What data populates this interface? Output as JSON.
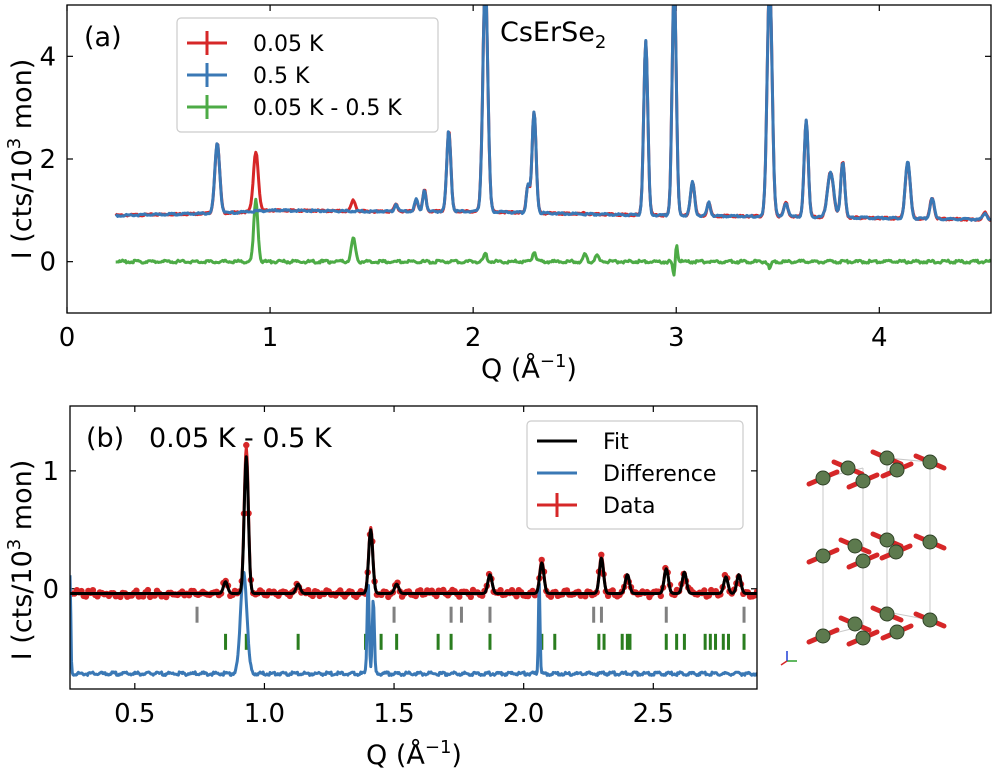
{
  "chart_data": [
    {
      "type": "line",
      "panel_label": "(a)",
      "title": "CsErSe",
      "title_subscript": "2",
      "xlabel": "Q (Å",
      "xlabel_sup": "−1",
      "xlabel_tail": ")",
      "ylabel": "I (cts/10",
      "ylabel_sup": "3",
      "ylabel_tail": " mon)",
      "xlim": [
        0,
        4.55
      ],
      "ylim": [
        -1,
        5
      ],
      "xticks": [
        0,
        1,
        2,
        3,
        4
      ],
      "yticks": [
        0,
        2,
        4
      ],
      "legend": {
        "placement": "top-left"
      },
      "series": [
        {
          "name": "0.05 K",
          "color": "#d62728",
          "baseline": [
            [
              0.24,
              0.9
            ],
            [
              0.8,
              0.95
            ],
            [
              1.0,
              1.0
            ],
            [
              1.5,
              0.98
            ],
            [
              2.0,
              0.98
            ],
            [
              2.5,
              0.93
            ],
            [
              3.0,
              0.9
            ],
            [
              3.5,
              0.88
            ],
            [
              4.0,
              0.85
            ],
            [
              4.55,
              0.82
            ]
          ],
          "peaks": [
            [
              0.74,
              2.3,
              0.012
            ],
            [
              0.93,
              2.15,
              0.012
            ],
            [
              1.41,
              1.2,
              0.01
            ],
            [
              1.62,
              1.12,
              0.008
            ],
            [
              1.72,
              1.22,
              0.008
            ],
            [
              1.76,
              1.4,
              0.008
            ],
            [
              1.88,
              2.55,
              0.01
            ],
            [
              2.06,
              5.5,
              0.012
            ],
            [
              2.27,
              1.5,
              0.008
            ],
            [
              2.3,
              2.92,
              0.01
            ],
            [
              2.55,
              0.95,
              0.008
            ],
            [
              2.61,
              0.92,
              0.008
            ],
            [
              2.85,
              4.3,
              0.01
            ],
            [
              2.99,
              5.5,
              0.01
            ],
            [
              3.08,
              1.55,
              0.01
            ],
            [
              3.16,
              1.15,
              0.008
            ],
            [
              3.46,
              5.5,
              0.012
            ],
            [
              3.54,
              1.15,
              0.01
            ],
            [
              3.64,
              2.75,
              0.01
            ],
            [
              3.76,
              1.75,
              0.015
            ],
            [
              3.82,
              1.95,
              0.01
            ],
            [
              4.14,
              1.95,
              0.012
            ],
            [
              4.26,
              1.25,
              0.01
            ],
            [
              4.52,
              0.95,
              0.01
            ]
          ]
        },
        {
          "name": "0.5 K",
          "color": "#3a78b5",
          "baseline": [
            [
              0.24,
              0.9
            ],
            [
              0.8,
              0.95
            ],
            [
              1.0,
              1.0
            ],
            [
              1.5,
              0.98
            ],
            [
              2.0,
              0.98
            ],
            [
              2.5,
              0.93
            ],
            [
              3.0,
              0.9
            ],
            [
              3.5,
              0.88
            ],
            [
              4.0,
              0.85
            ],
            [
              4.55,
              0.82
            ]
          ],
          "peaks": [
            [
              0.74,
              2.3,
              0.012
            ],
            [
              1.62,
              1.12,
              0.008
            ],
            [
              1.72,
              1.22,
              0.008
            ],
            [
              1.76,
              1.4,
              0.008
            ],
            [
              1.88,
              2.55,
              0.01
            ],
            [
              2.06,
              5.5,
              0.012
            ],
            [
              2.27,
              1.5,
              0.008
            ],
            [
              2.3,
              2.92,
              0.01
            ],
            [
              2.85,
              4.3,
              0.01
            ],
            [
              2.99,
              5.5,
              0.01
            ],
            [
              3.08,
              1.55,
              0.01
            ],
            [
              3.16,
              1.15,
              0.008
            ],
            [
              3.46,
              5.5,
              0.012
            ],
            [
              3.54,
              1.15,
              0.01
            ],
            [
              3.64,
              2.75,
              0.01
            ],
            [
              3.76,
              1.75,
              0.015
            ],
            [
              3.82,
              1.95,
              0.01
            ],
            [
              4.14,
              1.95,
              0.012
            ],
            [
              4.26,
              1.25,
              0.01
            ],
            [
              4.52,
              0.95,
              0.01
            ]
          ]
        },
        {
          "name": "0.05 K - 0.5 K",
          "color": "#4dab46",
          "baseline": [
            [
              0.24,
              0.0
            ],
            [
              4.55,
              0.0
            ]
          ],
          "peaks": [
            [
              0.93,
              1.2,
              0.01
            ],
            [
              1.41,
              0.45,
              0.01
            ],
            [
              2.06,
              0.15,
              0.008
            ],
            [
              2.3,
              0.2,
              0.008
            ],
            [
              2.55,
              0.15,
              0.008
            ],
            [
              2.61,
              0.12,
              0.008
            ],
            [
              2.99,
              -0.35,
              0.006
            ],
            [
              3.0,
              0.4,
              0.006
            ],
            [
              3.46,
              -0.15,
              0.006
            ]
          ]
        }
      ]
    },
    {
      "type": "line",
      "panel_label": "(b)",
      "title": "0.05 K - 0.5 K",
      "xlabel": "Q (Å",
      "xlabel_sup": "−1",
      "xlabel_tail": ")",
      "ylabel": "I (cts/10",
      "ylabel_sup": "3",
      "ylabel_tail": " mon)",
      "xlim": [
        0.25,
        2.9
      ],
      "ylim": [
        -0.85,
        1.55
      ],
      "xticks": [
        0.5,
        1.0,
        1.5,
        2.0,
        2.5
      ],
      "xticklabels": [
        "0.5",
        "1.0",
        "1.5",
        "2.0",
        "2.5"
      ],
      "yticks": [
        0,
        1
      ],
      "legend": {
        "placement": "top-right"
      },
      "series": [
        {
          "name": "Fit",
          "color": "#000000",
          "baseline": [
            [
              0.25,
              -0.04
            ],
            [
              2.9,
              -0.04
            ]
          ],
          "peaks": [
            [
              0.85,
              0.06,
              0.008
            ],
            [
              0.93,
              1.12,
              0.008
            ],
            [
              1.13,
              0.04,
              0.008
            ],
            [
              1.41,
              0.5,
              0.008
            ],
            [
              1.51,
              0.04,
              0.008
            ],
            [
              1.87,
              0.12,
              0.008
            ],
            [
              2.07,
              0.22,
              0.008
            ],
            [
              2.3,
              0.26,
              0.008
            ],
            [
              2.4,
              0.12,
              0.008
            ],
            [
              2.55,
              0.17,
              0.008
            ],
            [
              2.62,
              0.14,
              0.008
            ],
            [
              2.78,
              0.1,
              0.008
            ],
            [
              2.83,
              0.12,
              0.008
            ]
          ]
        },
        {
          "name": "Difference",
          "color": "#3a78b5",
          "baseline": [
            [
              0.25,
              -0.72
            ],
            [
              2.9,
              -0.72
            ]
          ],
          "peaks": [
            [
              0.25,
              0.1,
              0.003
            ],
            [
              0.92,
              0.15,
              0.012
            ],
            [
              1.4,
              0.07,
              0.004
            ],
            [
              1.42,
              -0.1,
              0.004
            ],
            [
              2.06,
              0.08,
              0.003
            ]
          ]
        },
        {
          "name": "Data",
          "color": "#d62728",
          "baseline": [
            [
              0.25,
              -0.04
            ],
            [
              2.9,
              -0.04
            ]
          ],
          "peaks": [
            [
              0.85,
              0.06,
              0.008
            ],
            [
              0.93,
              1.2,
              0.008
            ],
            [
              1.13,
              0.04,
              0.008
            ],
            [
              1.41,
              0.52,
              0.008
            ],
            [
              1.51,
              0.04,
              0.008
            ],
            [
              1.87,
              0.12,
              0.008
            ],
            [
              2.07,
              0.24,
              0.008
            ],
            [
              2.3,
              0.28,
              0.008
            ],
            [
              2.4,
              0.12,
              0.008
            ],
            [
              2.55,
              0.18,
              0.008
            ],
            [
              2.62,
              0.14,
              0.008
            ],
            [
              2.78,
              0.1,
              0.008
            ],
            [
              2.83,
              0.12,
              0.008
            ]
          ]
        }
      ],
      "reflection_ticks": [
        {
          "color": "#808080",
          "y": -0.22,
          "positions": [
            0.74,
            1.5,
            1.72,
            1.76,
            1.87,
            2.06,
            2.27,
            2.3,
            2.55,
            2.85
          ]
        },
        {
          "color": "#2a7d1f",
          "y": -0.45,
          "positions": [
            0.85,
            0.93,
            1.13,
            1.39,
            1.45,
            1.51,
            1.67,
            1.72,
            1.87,
            2.07,
            2.12,
            2.29,
            2.31,
            2.38,
            2.4,
            2.41,
            2.55,
            2.59,
            2.62,
            2.7,
            2.72,
            2.74,
            2.77,
            2.79,
            2.85
          ]
        }
      ]
    }
  ]
}
